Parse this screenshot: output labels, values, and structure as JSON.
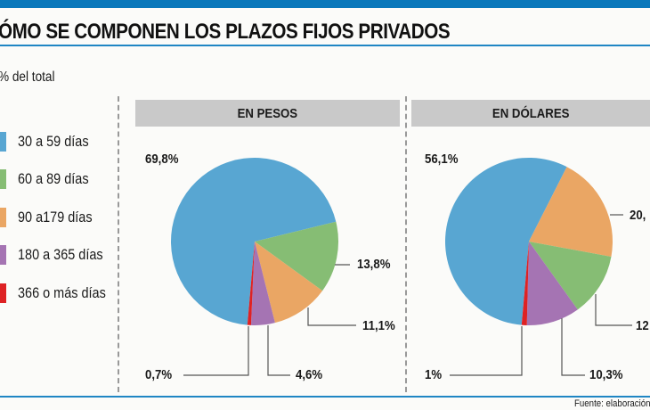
{
  "chart_data": [
    {
      "type": "pie",
      "title": "EN PESOS",
      "categories": [
        "30 a 59 días",
        "60 a 89 días",
        "90 a179 días",
        "180 a 365 días",
        "366 o más días"
      ],
      "values": [
        69.8,
        13.8,
        11.1,
        4.6,
        0.7
      ],
      "labels": [
        "69,8%",
        "13,8%",
        "11,1%",
        "4,6%",
        "0,7%"
      ]
    },
    {
      "type": "pie",
      "title": "EN DÓLARES",
      "categories": [
        "30 a 59 días",
        "90 a179 días",
        "60 a 89 días",
        "180 a 365 días",
        "366 o más días"
      ],
      "values": [
        56.1,
        20.4,
        12.2,
        10.3,
        1.0
      ],
      "labels": [
        "56,1%",
        "20,",
        "12",
        "10,3%",
        "1%"
      ]
    }
  ],
  "header": {
    "title": "ÓMO SE COMPONEN LOS PLAZOS FIJOS PRIVADOS",
    "subtitle": "% del total"
  },
  "legend": [
    {
      "label": "30 a 59 días",
      "color": "#58a6d2"
    },
    {
      "label": "60 a 89 días",
      "color": "#86bd74"
    },
    {
      "label": "90 a179 días",
      "color": "#eaa664"
    },
    {
      "label": "180 a 365 días",
      "color": "#a574b3"
    },
    {
      "label": "366 o más días",
      "color": "#de2224"
    }
  ],
  "colors": {
    "accent": "#0a78bb",
    "header_bg": "#c9c9c9"
  },
  "footer": {
    "source": "Fuente: elaboración"
  }
}
